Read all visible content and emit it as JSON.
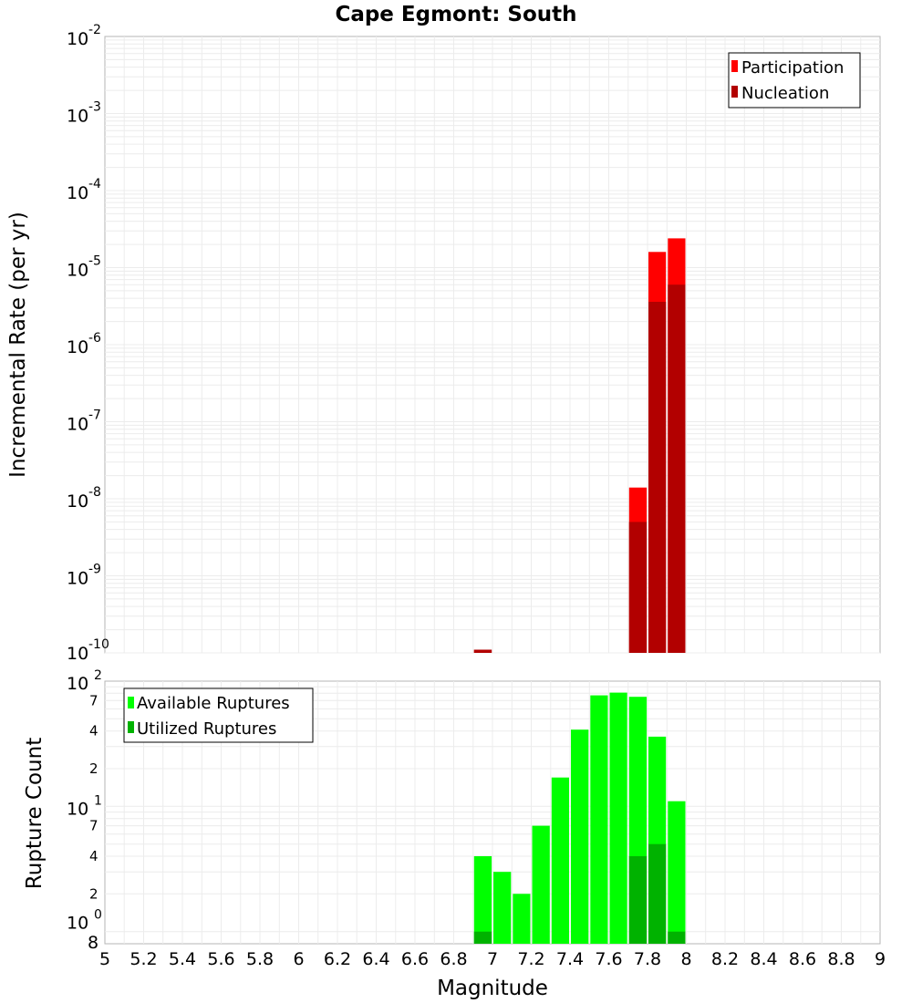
{
  "chart_data": [
    {
      "type": "bar",
      "title": "Cape Egmont: South",
      "xlabel": "Magnitude",
      "ylabel": "Incremental Rate (per yr)",
      "yscale": "log",
      "ylim": [
        1e-10,
        0.01
      ],
      "xlim": [
        5,
        9
      ],
      "y_tick_labels": [
        {
          "base": "10",
          "exp": "-2"
        },
        {
          "base": "10",
          "exp": "-3"
        },
        {
          "base": "10",
          "exp": "-4"
        },
        {
          "base": "10",
          "exp": "-5"
        },
        {
          "base": "10",
          "exp": "-6"
        },
        {
          "base": "10",
          "exp": "-7"
        },
        {
          "base": "10",
          "exp": "-8"
        },
        {
          "base": "10",
          "exp": "-9"
        },
        {
          "base": "10",
          "exp": "-10"
        }
      ],
      "legend": {
        "position": "top-right",
        "entries": [
          "Participation",
          "Nucleation"
        ]
      },
      "series": [
        {
          "name": "Participation",
          "color": "#ff0000",
          "x": [
            6.95,
            7.75,
            7.85,
            7.95
          ],
          "values": [
            1.1e-10,
            1.4e-08,
            1.6e-05,
            2.4e-05
          ]
        },
        {
          "name": "Nucleation",
          "color": "#b20000",
          "x": [
            6.95,
            7.75,
            7.85,
            7.95
          ],
          "values": [
            1.1e-10,
            5e-09,
            3.6e-06,
            6e-06
          ]
        }
      ]
    },
    {
      "type": "bar",
      "xlabel": "Magnitude",
      "ylabel": "Rupture Count",
      "yscale": "log",
      "ylim": [
        0.8,
        100
      ],
      "xlim": [
        5,
        9
      ],
      "x_tick_labels": [
        "5",
        "5.2",
        "5.4",
        "5.6",
        "5.8",
        "6",
        "6.2",
        "6.4",
        "6.6",
        "6.8",
        "7",
        "7.2",
        "7.4",
        "7.6",
        "7.8",
        "8",
        "8.2",
        "8.4",
        "8.6",
        "8.8",
        "9"
      ],
      "y_tick_labels": [
        {
          "base": "10",
          "exp": "2"
        },
        {
          "base": "10",
          "exp": "1"
        },
        {
          "base": "10",
          "exp": "0"
        }
      ],
      "y_minor_labels": [
        "7",
        "4",
        "2",
        "7",
        "4",
        "2",
        "8"
      ],
      "legend": {
        "position": "top-left",
        "entries": [
          "Available Ruptures",
          "Utilized Ruptures"
        ]
      },
      "series": [
        {
          "name": "Available Ruptures",
          "color": "#00ff00",
          "x": [
            6.95,
            7.05,
            7.15,
            7.25,
            7.35,
            7.45,
            7.55,
            7.65,
            7.75,
            7.85,
            7.95
          ],
          "values": [
            4,
            3,
            2,
            7,
            17,
            41,
            77,
            81,
            75,
            36,
            11
          ]
        },
        {
          "name": "Utilized Ruptures",
          "color": "#00b200",
          "x": [
            6.95,
            7.75,
            7.85,
            7.95
          ],
          "values": [
            1,
            4,
            5,
            1
          ]
        }
      ]
    }
  ]
}
